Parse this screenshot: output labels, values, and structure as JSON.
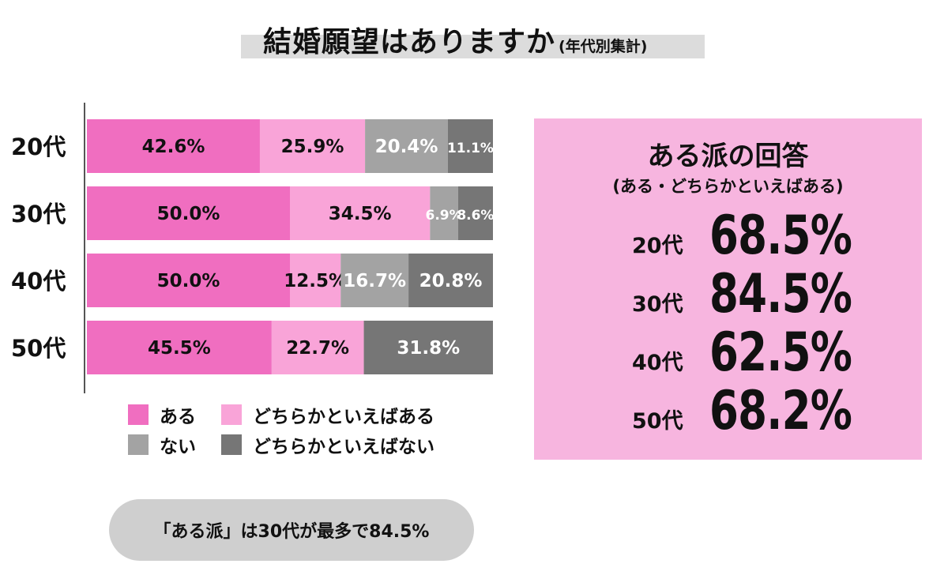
{
  "title": {
    "main": "結婚願望はありますか",
    "sub": "(年代別集計)"
  },
  "chart_data": {
    "type": "bar",
    "orientation": "horizontal",
    "stacked": true,
    "categories": [
      "20代",
      "30代",
      "40代",
      "50代"
    ],
    "series": [
      {
        "name": "ある",
        "color": "#f06ec0",
        "values": [
          42.6,
          50.0,
          50.0,
          45.5
        ],
        "labels": [
          "42.6%",
          "50.0%",
          "50.0%",
          "45.5%"
        ],
        "label_color": "#111111"
      },
      {
        "name": "どちらかといえばある",
        "color": "#f9a4d8",
        "values": [
          25.9,
          34.5,
          12.5,
          22.7
        ],
        "labels": [
          "25.9%",
          "34.5%",
          "12.5%",
          "22.7%"
        ],
        "label_color": "#111111"
      },
      {
        "name": "ない",
        "color": "#a3a3a3",
        "values": [
          20.4,
          6.9,
          16.7,
          0
        ],
        "labels": [
          "20.4%",
          "6.9%",
          "16.7%",
          ""
        ],
        "label_color": "#ffffff"
      },
      {
        "name": "どちらかといえばない",
        "color": "#767676",
        "values": [
          11.1,
          8.6,
          20.8,
          31.8
        ],
        "labels": [
          "11.1%",
          "8.6%",
          "20.8%",
          "31.8%"
        ],
        "label_color": "#ffffff"
      }
    ],
    "xlim": [
      0,
      100
    ],
    "unit": "%"
  },
  "note": "「ある派」は30代が最多で84.5%",
  "panel": {
    "title": "ある派の回答",
    "subtitle": "(ある・どちらかといえばある)",
    "rows": [
      {
        "age": "20代",
        "value": "68.5%"
      },
      {
        "age": "30代",
        "value": "84.5%"
      },
      {
        "age": "40代",
        "value": "62.5%"
      },
      {
        "age": "50代",
        "value": "68.2%"
      }
    ]
  }
}
